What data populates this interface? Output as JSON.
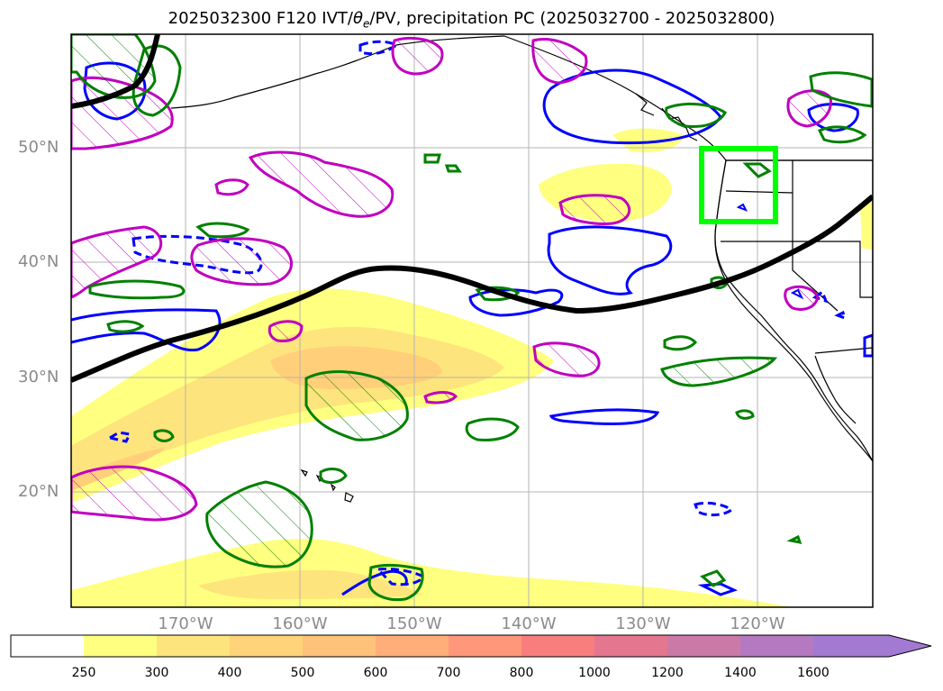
{
  "title": {
    "prefix": "2025032300 F120 IVT/",
    "theta_symbol": "θ",
    "theta_subscript": "e",
    "suffix": "/PV, precipitation PC (2025032700 - 2025032800)"
  },
  "map": {
    "projection": "equirectangular",
    "lon_range": [
      "180°",
      "110°W"
    ],
    "lat_range": [
      "10°N",
      "60°N"
    ],
    "gridlines": true,
    "lat_labels": [
      "50°N",
      "40°N",
      "30°N",
      "20°N"
    ],
    "lon_labels": [
      "170°W",
      "160°W",
      "150°W",
      "140°W",
      "130°W",
      "120°W"
    ],
    "colors": {
      "ivt_250": "#ffff80",
      "ivt_300": "#fee47c",
      "ivt_400": "#ffcf79",
      "theta_pv_line": "#000000",
      "precip_pc_contour_blue": "#0000ff",
      "magenta_contour": "#c000c0",
      "green_contour": "#008000",
      "target_box": "#00ff00",
      "coastline": "#000000"
    }
  },
  "colorbar": {
    "tick_labels": [
      "250",
      "300",
      "400",
      "500",
      "600",
      "700",
      "800",
      "1000",
      "1200",
      "1400",
      "1600"
    ],
    "colors": [
      "#ffffff",
      "#ffff80",
      "#fee47c",
      "#ffd37a",
      "#ffc27a",
      "#ffae7a",
      "#ff987a",
      "#f87e7d",
      "#e47690",
      "#cb7aa8",
      "#b479c0",
      "#a27ad2"
    ],
    "extend": "max"
  }
}
